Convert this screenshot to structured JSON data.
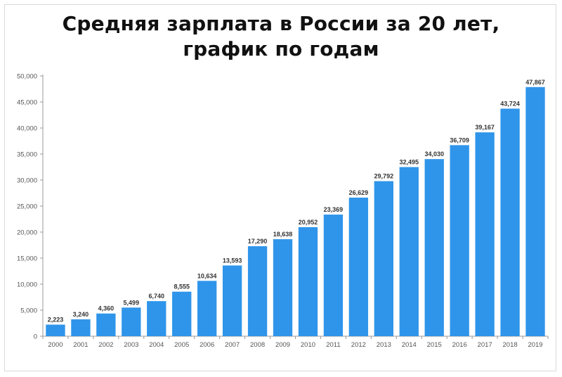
{
  "title": {
    "line1": "Средняя зарплата в России за 20 лет,",
    "line2": "график по годам"
  },
  "colors": {
    "bar": "#2f95ea",
    "axis": "#999999",
    "text": "#111111"
  },
  "chart_data": {
    "type": "bar",
    "title": "Средняя зарплата в России за 20 лет, график по годам",
    "xlabel": "",
    "ylabel": "",
    "ylim": [
      0,
      50000
    ],
    "yticks": [
      0,
      5000,
      10000,
      15000,
      20000,
      25000,
      30000,
      35000,
      40000,
      45000,
      50000
    ],
    "ytick_labels": [
      "0",
      "5,000",
      "10,000",
      "15,000",
      "20,000",
      "25,000",
      "30,000",
      "35,000",
      "40,000",
      "45,000",
      "50,000"
    ],
    "categories": [
      "2000",
      "2001",
      "2002",
      "2003",
      "2004",
      "2005",
      "2006",
      "2007",
      "2008",
      "2009",
      "2010",
      "2011",
      "2012",
      "2013",
      "2014",
      "2015",
      "2016",
      "2017",
      "2018",
      "2019"
    ],
    "values": [
      2223,
      3240,
      4360,
      5499,
      6740,
      8555,
      10634,
      13593,
      17290,
      18638,
      20952,
      23369,
      26629,
      29792,
      32495,
      34030,
      36709,
      39167,
      43724,
      47867
    ],
    "value_labels": [
      "2,223",
      "3,240",
      "4,360",
      "5,499",
      "6,740",
      "8,555",
      "10,634",
      "13,593",
      "17,290",
      "18,638",
      "20,952",
      "23,369",
      "26,629",
      "29,792",
      "32,495",
      "34,030",
      "36,709",
      "39,167",
      "43,724",
      "47,867"
    ],
    "grid": false,
    "legend": "none"
  }
}
